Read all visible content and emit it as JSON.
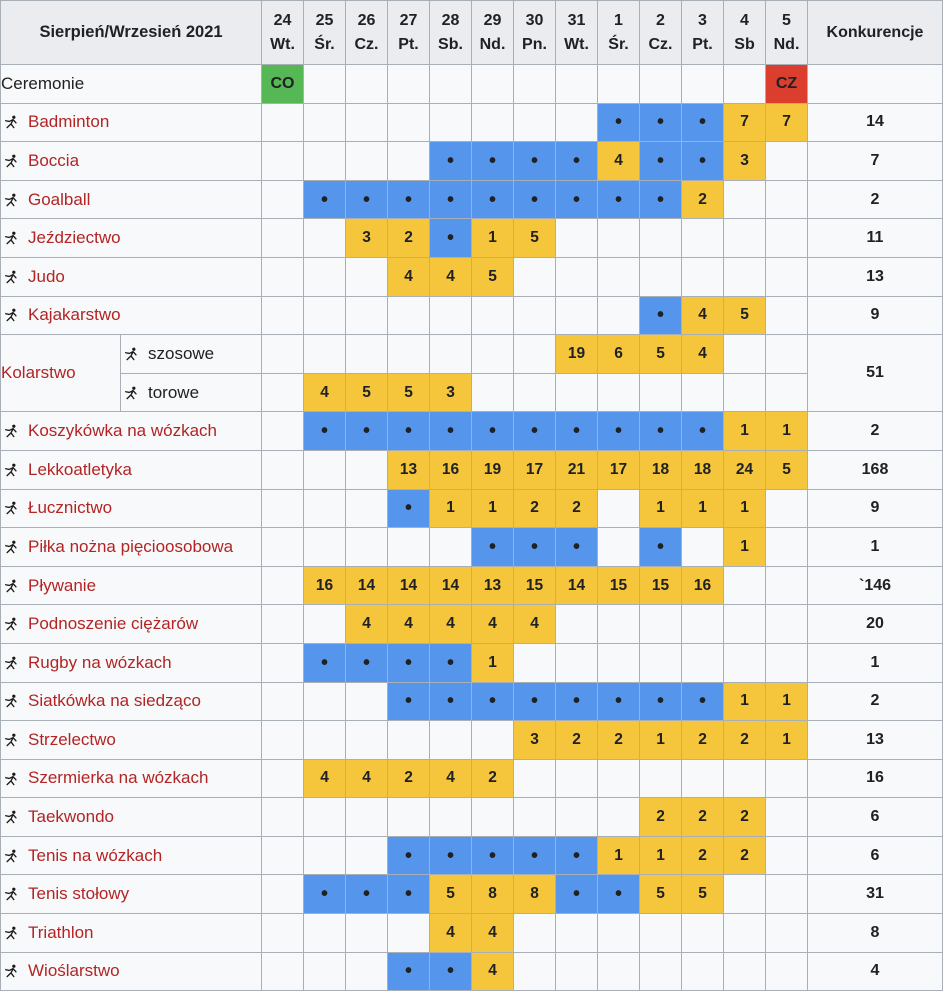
{
  "colors": {
    "event_blue": "#5596ec",
    "medal_yellow": "#f5c53c",
    "opening_green": "#55b855",
    "closing_red": "#db3d2e",
    "link_red": "#b32424",
    "header_bg": "#eaecf0",
    "cell_bg": "#f8f9fa"
  },
  "header": {
    "title": "Sierpień/Wrzesień 2021",
    "events_label": "Konkurencje",
    "days": [
      {
        "day": "24",
        "dow": "Wt."
      },
      {
        "day": "25",
        "dow": "Śr."
      },
      {
        "day": "26",
        "dow": "Cz."
      },
      {
        "day": "27",
        "dow": "Pt."
      },
      {
        "day": "28",
        "dow": "Sb."
      },
      {
        "day": "29",
        "dow": "Nd."
      },
      {
        "day": "30",
        "dow": "Pn."
      },
      {
        "day": "31",
        "dow": "Wt."
      },
      {
        "day": "1",
        "dow": "Śr."
      },
      {
        "day": "2",
        "dow": "Cz."
      },
      {
        "day": "3",
        "dow": "Pt."
      },
      {
        "day": "4",
        "dow": "Sb"
      },
      {
        "day": "5",
        "dow": "Nd."
      }
    ]
  },
  "legend": {
    "opening_ceremony": "CO",
    "closing_ceremony": "CZ",
    "event_day_marker": "•"
  },
  "ceremonies_row": {
    "label": "Ceremonie",
    "cells": [
      "CO",
      "",
      "",
      "",
      "",
      "",
      "",
      "",
      "",
      "",
      "",
      "",
      "CZ"
    ],
    "total": ""
  },
  "rows": [
    {
      "name": "Badminton",
      "slug": "badminton",
      "cells": [
        "",
        "",
        "",
        "",
        "",
        "",
        "",
        "",
        "•",
        "•",
        "•",
        "7",
        "7"
      ],
      "total": "14"
    },
    {
      "name": "Boccia",
      "slug": "boccia",
      "cells": [
        "",
        "",
        "",
        "",
        "•",
        "•",
        "•",
        "•",
        "4",
        "•",
        "•",
        "3",
        ""
      ],
      "total": "7"
    },
    {
      "name": "Goalball",
      "slug": "goalball",
      "cells": [
        "",
        "•",
        "•",
        "•",
        "•",
        "•",
        "•",
        "•",
        "•",
        "•",
        "2",
        "",
        ""
      ],
      "total": "2"
    },
    {
      "name": "Jeździectwo",
      "slug": "jezdziectwo",
      "cells": [
        "",
        "",
        "3",
        "2",
        "•",
        "1",
        "5",
        "",
        "",
        "",
        "",
        "",
        ""
      ],
      "total": "11"
    },
    {
      "name": "Judo",
      "slug": "judo",
      "cells": [
        "",
        "",
        "",
        "4",
        "4",
        "5",
        "",
        "",
        "",
        "",
        "",
        "",
        ""
      ],
      "total": "13"
    },
    {
      "name": "Kajakarstwo",
      "slug": "kajakarstwo",
      "cells": [
        "",
        "",
        "",
        "",
        "",
        "",
        "",
        "",
        "",
        "•",
        "4",
        "5",
        ""
      ],
      "total": "9"
    },
    {
      "name": "Kolarstwo",
      "slug": "kolarstwo",
      "group": true,
      "total": "51",
      "subrows": [
        {
          "label": "szosowe",
          "slug": "kolarstwo-szosowe",
          "icon": "road-cycling-icon",
          "cells": [
            "",
            "",
            "",
            "",
            "",
            "",
            "",
            "19",
            "6",
            "5",
            "4",
            "",
            ""
          ]
        },
        {
          "label": "torowe",
          "slug": "kolarstwo-torowe",
          "icon": "track-cycling-icon",
          "cells": [
            "",
            "4",
            "5",
            "5",
            "3",
            "",
            "",
            "",
            "",
            "",
            "",
            "",
            ""
          ]
        }
      ]
    },
    {
      "name": "Koszykówka na wózkach",
      "slug": "koszykowka-na-wozkach",
      "cells": [
        "",
        "•",
        "•",
        "•",
        "•",
        "•",
        "•",
        "•",
        "•",
        "•",
        "•",
        "1",
        "1"
      ],
      "total": "2"
    },
    {
      "name": "Lekkoatletyka",
      "slug": "lekkoatletyka",
      "cells": [
        "",
        "",
        "",
        "13",
        "16",
        "19",
        "17",
        "21",
        "17",
        "18",
        "18",
        "24",
        "5"
      ],
      "total": "168"
    },
    {
      "name": "Łucznictwo",
      "slug": "lucznictwo",
      "cells": [
        "",
        "",
        "",
        "•",
        "1",
        "1",
        "2",
        "2",
        "",
        "1",
        "1",
        "1",
        ""
      ],
      "total": "9"
    },
    {
      "name": "Piłka nożna pięcioosobowa",
      "slug": "pilka-nozna-piecioosobowa",
      "cells": [
        "",
        "",
        "",
        "",
        "",
        "•",
        "•",
        "•",
        "",
        "•",
        "",
        "1",
        ""
      ],
      "total": "1"
    },
    {
      "name": "Pływanie",
      "slug": "plywanie",
      "cells": [
        "",
        "16",
        "14",
        "14",
        "14",
        "13",
        "15",
        "14",
        "15",
        "15",
        "16",
        "",
        ""
      ],
      "total": "`146"
    },
    {
      "name": "Podnoszenie ciężarów",
      "slug": "podnoszenie-ciezarow",
      "cells": [
        "",
        "",
        "4",
        "4",
        "4",
        "4",
        "4",
        "",
        "",
        "",
        "",
        "",
        ""
      ],
      "total": "20"
    },
    {
      "name": "Rugby na wózkach",
      "slug": "rugby-na-wozkach",
      "cells": [
        "",
        "•",
        "•",
        "•",
        "•",
        "1",
        "",
        "",
        "",
        "",
        "",
        "",
        ""
      ],
      "total": "1"
    },
    {
      "name": "Siatkówka na siedząco",
      "slug": "siatkowka-na-siedzaco",
      "cells": [
        "",
        "",
        "",
        "•",
        "•",
        "•",
        "•",
        "•",
        "•",
        "•",
        "•",
        "1",
        "1"
      ],
      "total": "2"
    },
    {
      "name": "Strzelectwo",
      "slug": "strzelectwo",
      "cells": [
        "",
        "",
        "",
        "",
        "",
        "",
        "3",
        "2",
        "2",
        "1",
        "2",
        "2",
        "1"
      ],
      "total": "13"
    },
    {
      "name": "Szermierka na wózkach",
      "slug": "szermierka-na-wozkach",
      "cells": [
        "",
        "4",
        "4",
        "2",
        "4",
        "2",
        "",
        "",
        "",
        "",
        "",
        "",
        ""
      ],
      "total": "16"
    },
    {
      "name": "Taekwondo",
      "slug": "taekwondo",
      "cells": [
        "",
        "",
        "",
        "",
        "",
        "",
        "",
        "",
        "",
        "2",
        "2",
        "2",
        ""
      ],
      "total": "6"
    },
    {
      "name": "Tenis na wózkach",
      "slug": "tenis-na-wozkach",
      "cells": [
        "",
        "",
        "",
        "•",
        "•",
        "•",
        "•",
        "•",
        "1",
        "1",
        "2",
        "2",
        ""
      ],
      "total": "6"
    },
    {
      "name": "Tenis stołowy",
      "slug": "tenis-stolowy",
      "cells": [
        "",
        "•",
        "•",
        "•",
        "5",
        "8",
        "8",
        "•",
        "•",
        "5",
        "5",
        "",
        ""
      ],
      "total": "31"
    },
    {
      "name": "Triathlon",
      "slug": "triathlon",
      "cells": [
        "",
        "",
        "",
        "",
        "4",
        "4",
        "",
        "",
        "",
        "",
        "",
        "",
        ""
      ],
      "total": "8"
    },
    {
      "name": "Wioślarstwo",
      "slug": "wioslarstwo",
      "cells": [
        "",
        "",
        "",
        "•",
        "•",
        "4",
        "",
        "",
        "",
        "",
        "",
        "",
        ""
      ],
      "total": "4"
    }
  ]
}
